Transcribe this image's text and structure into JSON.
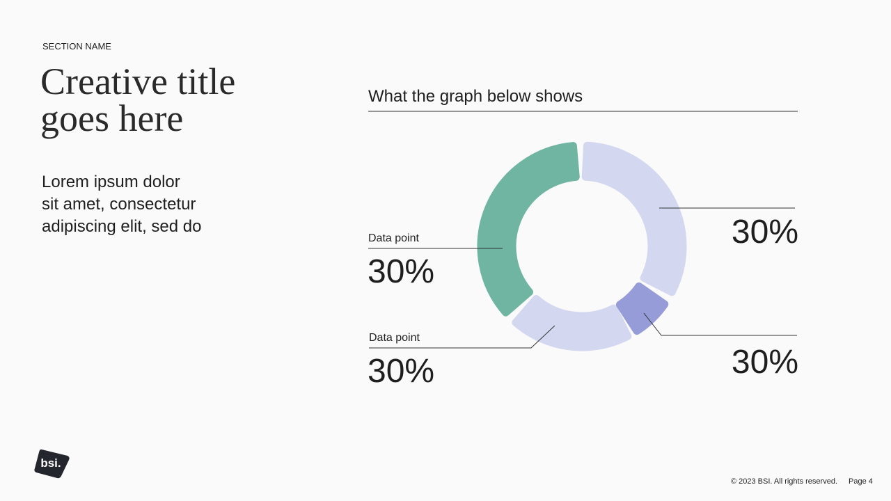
{
  "section_name": "SECTION NAME",
  "title": [
    "Creative title",
    "goes here"
  ],
  "body": [
    "Lorem ipsum dolor",
    "sit amet, consectetur",
    "adipiscing elit, sed do"
  ],
  "graph_heading": "What the graph below shows",
  "callouts": [
    {
      "value": "30%"
    },
    {
      "label": "Data point",
      "value": "30%"
    },
    {
      "label": "Data point",
      "value": "30%"
    },
    {
      "value": "30%"
    }
  ],
  "logo": "bsi.",
  "footer": {
    "copyright": "© 2023 BSI. All rights reserved.",
    "page": "Page 4"
  }
}
